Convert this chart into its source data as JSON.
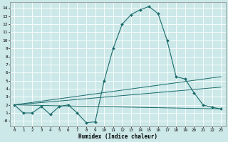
{
  "xlabel": "Humidex (Indice chaleur)",
  "bg_color": "#cce8e8",
  "grid_color": "#ffffff",
  "line_color": "#1a6b6b",
  "xlim": [
    -0.5,
    23.5
  ],
  "ylim": [
    -0.7,
    14.7
  ],
  "xticks": [
    0,
    1,
    2,
    3,
    4,
    5,
    6,
    7,
    8,
    9,
    10,
    11,
    12,
    13,
    14,
    15,
    16,
    17,
    18,
    19,
    20,
    21,
    22,
    23
  ],
  "yticks": [
    0,
    1,
    2,
    3,
    4,
    5,
    6,
    7,
    8,
    9,
    10,
    11,
    12,
    13,
    14
  ],
  "ytick_labels": [
    "-0",
    "1",
    "2",
    "3",
    "4",
    "5",
    "6",
    "7",
    "8",
    "9",
    "10",
    "11",
    "12",
    "13",
    "14"
  ],
  "main_x": [
    0,
    1,
    2,
    3,
    4,
    5,
    6,
    7,
    8,
    9,
    10,
    11,
    12,
    13,
    14,
    15,
    16,
    17,
    18,
    19,
    20,
    21,
    22,
    23
  ],
  "main_y": [
    2.0,
    1.0,
    1.0,
    1.8,
    0.8,
    1.8,
    2.0,
    1.0,
    -0.2,
    -0.1,
    5.0,
    9.0,
    12.0,
    13.2,
    13.8,
    14.2,
    13.3,
    10.0,
    5.5,
    5.2,
    3.5,
    2.0,
    1.7,
    1.5
  ],
  "trend_lines": [
    {
      "x": [
        0,
        23
      ],
      "y": [
        2.0,
        1.5
      ]
    },
    {
      "x": [
        0,
        23
      ],
      "y": [
        2.0,
        4.2
      ]
    },
    {
      "x": [
        0,
        23
      ],
      "y": [
        2.0,
        5.5
      ]
    }
  ]
}
